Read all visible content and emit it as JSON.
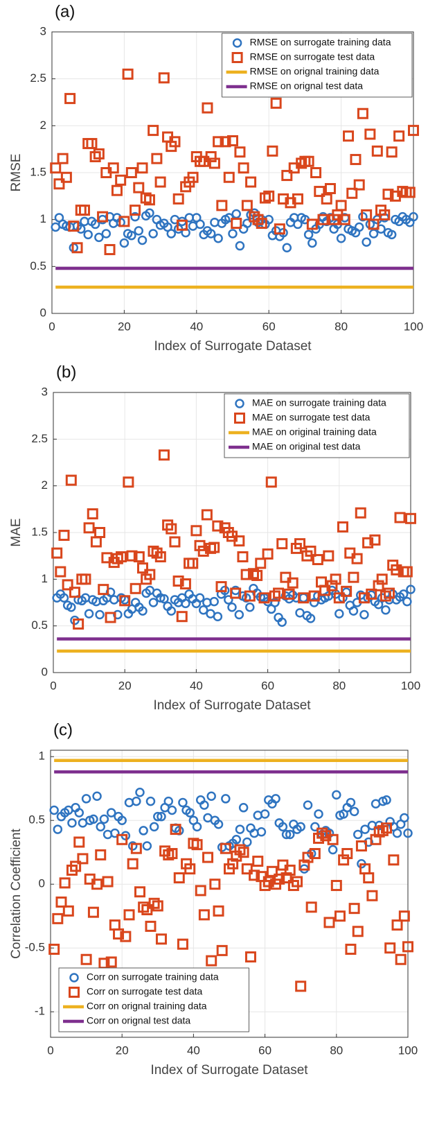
{
  "chart_data": [
    {
      "type": "scatter",
      "panel_label": "(a)",
      "ylabel": "RMSE",
      "xlabel": "Index of Surrogate Dataset",
      "xlim": [
        0,
        100
      ],
      "xticks": [
        0,
        20,
        40,
        60,
        80,
        100
      ],
      "ylim": [
        0,
        3
      ],
      "yticks": [
        0,
        0.5,
        1,
        1.5,
        2,
        2.5,
        3
      ],
      "grid": true,
      "legend": "top-right",
      "x": [
        1,
        2,
        3,
        4,
        5,
        6,
        7,
        8,
        9,
        10,
        11,
        12,
        13,
        14,
        15,
        16,
        17,
        18,
        19,
        20,
        21,
        22,
        23,
        24,
        25,
        26,
        27,
        28,
        29,
        30,
        31,
        32,
        33,
        34,
        35,
        36,
        37,
        38,
        39,
        40,
        41,
        42,
        43,
        44,
        45,
        46,
        47,
        48,
        49,
        50,
        51,
        52,
        53,
        54,
        55,
        56,
        57,
        58,
        59,
        60,
        61,
        62,
        63,
        64,
        65,
        66,
        67,
        68,
        69,
        70,
        71,
        72,
        73,
        74,
        75,
        76,
        77,
        78,
        79,
        80,
        81,
        82,
        83,
        84,
        85,
        86,
        87,
        88,
        89,
        90,
        91,
        92,
        93,
        94,
        95,
        96,
        97,
        98,
        99,
        100
      ],
      "series": [
        {
          "name": "RMSE on surrogate training data",
          "color": "#2f74c0",
          "marker": "circle",
          "values": [
            0.92,
            1.02,
            0.95,
            0.93,
            0.92,
            0.7,
            0.93,
            0.9,
            0.98,
            0.84,
            0.98,
            0.95,
            0.81,
            1.0,
            0.85,
            1.03,
            0.96,
            1.02,
            0.97,
            0.75,
            0.85,
            0.83,
            1.03,
            0.88,
            0.78,
            1.04,
            1.07,
            0.85,
            1.0,
            0.94,
            0.96,
            0.92,
            0.85,
            1.0,
            0.9,
            0.98,
            0.86,
            1.02,
            0.93,
            1.02,
            0.95,
            0.84,
            0.88,
            0.85,
            0.97,
            0.8,
            0.96,
            1.0,
            1.02,
            0.85,
            1.06,
            0.72,
            0.9,
            0.96,
            1.05,
            1.07,
            0.97,
            1.0,
            0.95,
            1.0,
            0.83,
            0.88,
            0.82,
            0.86,
            0.7,
            0.97,
            1.02,
            0.95,
            1.02,
            1.0,
            0.84,
            0.75,
            0.9,
            0.95,
            1.03,
            0.98,
            1.02,
            0.9,
            0.95,
            0.8,
            1.02,
            0.9,
            0.88,
            0.86,
            0.92,
            1.03,
            0.76,
            0.95,
            0.85,
            1.0,
            0.9,
            1.02,
            0.86,
            0.84,
            1.0,
            0.98,
            1.03,
            1.0,
            0.97,
            1.03
          ]
        },
        {
          "name": "RMSE on surrogate test data",
          "color": "#d9461c",
          "marker": "square",
          "values": [
            1.55,
            1.38,
            1.65,
            1.45,
            2.29,
            0.93,
            0.7,
            1.1,
            1.1,
            1.81,
            1.81,
            1.67,
            1.7,
            1.03,
            1.5,
            0.68,
            1.55,
            1.31,
            1.42,
            0.98,
            2.55,
            1.5,
            1.1,
            1.34,
            1.55,
            1.23,
            1.21,
            1.95,
            1.65,
            1.4,
            2.51,
            1.88,
            1.78,
            1.83,
            1.22,
            0.94,
            1.35,
            1.4,
            1.45,
            1.67,
            1.62,
            1.62,
            2.19,
            1.67,
            1.6,
            1.83,
            1.15,
            1.83,
            1.45,
            1.84,
            0.96,
            1.72,
            1.55,
            1.15,
            1.4,
            1.03,
            1.0,
            0.96,
            1.23,
            1.25,
            1.73,
            2.24,
            0.9,
            1.22,
            1.47,
            1.18,
            1.55,
            1.22,
            1.6,
            1.62,
            1.62,
            0.95,
            1.5,
            1.3,
            1.0,
            1.22,
            1.33,
            1.0,
            1.05,
            1.15,
            1.0,
            1.89,
            1.28,
            1.64,
            1.37,
            2.13,
            1.05,
            1.91,
            0.95,
            1.73,
            1.1,
            1.05,
            1.27,
            1.72,
            1.25,
            1.89,
            1.3,
            1.29,
            1.29,
            1.95
          ]
        },
        {
          "name": "RMSE on orignal training data",
          "color": "#edb120",
          "value": 0.28
        },
        {
          "name": "RMSE on orignal test data",
          "color": "#7e2f8e",
          "value": 0.48
        }
      ]
    },
    {
      "type": "scatter",
      "panel_label": "(b)",
      "ylabel": "MAE",
      "xlabel": "Index of Surrogate Dataset",
      "xlim": [
        0,
        100
      ],
      "xticks": [
        0,
        20,
        40,
        60,
        80,
        100
      ],
      "ylim": [
        0,
        3
      ],
      "yticks": [
        0,
        0.5,
        1,
        1.5,
        2,
        2.5,
        3
      ],
      "grid": true,
      "legend": "top-right",
      "x": [
        1,
        2,
        3,
        4,
        5,
        6,
        7,
        8,
        9,
        10,
        11,
        12,
        13,
        14,
        15,
        16,
        17,
        18,
        19,
        20,
        21,
        22,
        23,
        24,
        25,
        26,
        27,
        28,
        29,
        30,
        31,
        32,
        33,
        34,
        35,
        36,
        37,
        38,
        39,
        40,
        41,
        42,
        43,
        44,
        45,
        46,
        47,
        48,
        49,
        50,
        51,
        52,
        53,
        54,
        55,
        56,
        57,
        58,
        59,
        60,
        61,
        62,
        63,
        64,
        65,
        66,
        67,
        68,
        69,
        70,
        71,
        72,
        73,
        74,
        75,
        76,
        77,
        78,
        79,
        80,
        81,
        82,
        83,
        84,
        85,
        86,
        87,
        88,
        89,
        90,
        91,
        92,
        93,
        94,
        95,
        96,
        97,
        98,
        99,
        100
      ],
      "series": [
        {
          "name": "MAE on surrogate training data",
          "color": "#2f74c0",
          "marker": "circle",
          "values": [
            0.8,
            0.84,
            0.8,
            0.72,
            0.7,
            0.56,
            0.78,
            0.77,
            0.8,
            0.63,
            0.78,
            0.76,
            0.62,
            0.77,
            0.8,
            0.86,
            0.78,
            0.62,
            0.8,
            0.78,
            0.63,
            0.68,
            0.75,
            0.7,
            0.66,
            0.85,
            0.88,
            0.75,
            0.85,
            0.8,
            0.79,
            0.71,
            0.66,
            0.78,
            0.75,
            0.8,
            0.74,
            0.84,
            0.79,
            0.74,
            0.8,
            0.67,
            0.75,
            0.63,
            0.76,
            0.6,
            0.84,
            0.88,
            0.78,
            0.7,
            0.88,
            0.62,
            0.82,
            0.8,
            0.7,
            0.9,
            0.85,
            0.81,
            0.8,
            0.76,
            0.68,
            0.75,
            0.59,
            0.54,
            0.82,
            0.79,
            0.83,
            0.8,
            0.64,
            0.8,
            0.61,
            0.58,
            0.75,
            0.82,
            0.78,
            0.8,
            0.82,
            0.88,
            0.84,
            0.63,
            0.8,
            0.86,
            0.72,
            0.66,
            0.75,
            0.83,
            0.62,
            0.8,
            0.83,
            0.76,
            0.73,
            0.8,
            0.67,
            0.78,
            0.84,
            0.78,
            0.81,
            0.84,
            0.76,
            0.89
          ]
        },
        {
          "name": "MAE on surrogate test data",
          "color": "#d9461c",
          "marker": "square",
          "values": [
            1.28,
            1.08,
            1.47,
            0.94,
            2.06,
            0.86,
            0.52,
            1.0,
            1.0,
            1.55,
            1.7,
            1.4,
            1.5,
            0.89,
            1.23,
            0.59,
            1.18,
            1.22,
            1.24,
            0.77,
            2.04,
            1.25,
            0.9,
            1.24,
            1.12,
            1.0,
            1.05,
            1.3,
            1.28,
            1.24,
            2.33,
            1.58,
            1.54,
            1.4,
            0.98,
            0.6,
            0.95,
            1.17,
            1.17,
            1.52,
            1.36,
            1.3,
            1.69,
            1.33,
            1.34,
            1.57,
            0.92,
            1.55,
            1.5,
            1.46,
            0.85,
            1.41,
            1.24,
            1.05,
            0.82,
            1.06,
            1.04,
            1.17,
            0.8,
            1.27,
            2.04,
            0.82,
            0.85,
            1.38,
            1.02,
            0.84,
            0.96,
            1.33,
            1.38,
            0.8,
            1.25,
            1.3,
            0.82,
            1.21,
            0.97,
            0.88,
            1.25,
            0.93,
            1.0,
            0.8,
            1.56,
            0.87,
            1.28,
            1.02,
            1.22,
            1.71,
            0.8,
            1.39,
            0.84,
            1.42,
            0.93,
            1.0,
            0.82,
            0.85,
            1.15,
            1.1,
            1.66,
            1.08,
            1.08,
            1.65
          ]
        },
        {
          "name": "MAE on original training data",
          "color": "#edb120",
          "value": 0.23
        },
        {
          "name": "MAE on original test data",
          "color": "#7e2f8e",
          "value": 0.36
        }
      ]
    },
    {
      "type": "scatter",
      "panel_label": "(c)",
      "ylabel": "Correlation Coefficient",
      "xlabel": "Index of Surrogate Dataset",
      "xlim": [
        0,
        100
      ],
      "xticks": [
        0,
        20,
        40,
        60,
        80,
        100
      ],
      "ylim": [
        -1.2,
        1.05
      ],
      "yticks": [
        -1,
        -0.5,
        0,
        0.5,
        1
      ],
      "grid": true,
      "legend": "bottom-left",
      "x": [
        1,
        2,
        3,
        4,
        5,
        6,
        7,
        8,
        9,
        10,
        11,
        12,
        13,
        14,
        15,
        16,
        17,
        18,
        19,
        20,
        21,
        22,
        23,
        24,
        25,
        26,
        27,
        28,
        29,
        30,
        31,
        32,
        33,
        34,
        35,
        36,
        37,
        38,
        39,
        40,
        41,
        42,
        43,
        44,
        45,
        46,
        47,
        48,
        49,
        50,
        51,
        52,
        53,
        54,
        55,
        56,
        57,
        58,
        59,
        60,
        61,
        62,
        63,
        64,
        65,
        66,
        67,
        68,
        69,
        70,
        71,
        72,
        73,
        74,
        75,
        76,
        77,
        78,
        79,
        80,
        81,
        82,
        83,
        84,
        85,
        86,
        87,
        88,
        89,
        90,
        91,
        92,
        93,
        94,
        95,
        96,
        97,
        98,
        99,
        100
      ],
      "series": [
        {
          "name": "Corr on surrogate training data",
          "color": "#2f74c0",
          "marker": "circle",
          "values": [
            0.58,
            0.43,
            0.53,
            0.56,
            0.58,
            0.48,
            0.6,
            0.56,
            0.48,
            0.67,
            0.5,
            0.51,
            0.69,
            0.45,
            0.51,
            0.39,
            0.56,
            0.4,
            0.53,
            0.5,
            0.38,
            0.64,
            0.3,
            0.65,
            0.72,
            0.42,
            0.3,
            0.65,
            0.45,
            0.53,
            0.53,
            0.6,
            0.65,
            0.58,
            0.44,
            0.42,
            0.64,
            0.58,
            0.56,
            0.5,
            0.45,
            0.66,
            0.62,
            0.52,
            0.69,
            0.5,
            0.47,
            0.29,
            0.67,
            0.3,
            0.32,
            0.35,
            0.43,
            0.6,
            0.33,
            0.44,
            0.4,
            0.54,
            0.41,
            0.55,
            0.66,
            0.63,
            0.67,
            0.48,
            0.45,
            0.39,
            0.39,
            0.47,
            0.43,
            0.45,
            0.12,
            0.62,
            0.24,
            0.45,
            0.55,
            0.39,
            0.42,
            0.4,
            0.27,
            0.7,
            0.54,
            0.55,
            0.6,
            0.64,
            0.57,
            0.39,
            0.16,
            0.43,
            0.33,
            0.46,
            0.63,
            0.46,
            0.65,
            0.66,
            0.49,
            0.45,
            0.4,
            0.47,
            0.52,
            0.4
          ]
        },
        {
          "name": "Corr on surrogate test data",
          "color": "#d9461c",
          "marker": "square",
          "values": [
            -0.51,
            -0.27,
            -0.14,
            0.01,
            -0.21,
            0.11,
            0.14,
            0.33,
            0.2,
            -0.59,
            0.04,
            -0.22,
            0.0,
            0.23,
            -0.62,
            0.02,
            -0.61,
            -0.32,
            -0.39,
            0.35,
            -0.41,
            -0.24,
            0.16,
            0.28,
            -0.06,
            -0.18,
            -0.2,
            -0.33,
            -0.15,
            -0.17,
            -0.43,
            0.26,
            0.23,
            0.24,
            0.43,
            0.05,
            -0.47,
            0.16,
            0.12,
            0.32,
            0.31,
            -0.05,
            -0.24,
            0.21,
            -0.6,
            0.0,
            -0.21,
            -0.52,
            0.28,
            0.12,
            0.16,
            0.22,
            0.27,
            0.25,
            0.12,
            -0.57,
            0.07,
            0.18,
            0.06,
            -0.01,
            0.02,
            0.1,
            0.0,
            0.04,
            0.15,
            0.05,
            0.11,
            -0.01,
            0.02,
            -0.8,
            0.15,
            0.21,
            -0.18,
            0.24,
            0.36,
            0.4,
            0.38,
            -0.3,
            0.35,
            -0.01,
            -0.25,
            0.19,
            0.24,
            -0.51,
            -0.19,
            -0.37,
            0.3,
            0.12,
            0.05,
            -0.09,
            0.35,
            0.41,
            0.42,
            0.44,
            -0.5,
            0.19,
            -0.32,
            -0.59,
            -0.25,
            -0.49
          ]
        },
        {
          "name": "Corr on orignal training data",
          "color": "#edb120",
          "value": 0.97
        },
        {
          "name": "Corr on orignal test data",
          "color": "#7e2f8e",
          "value": 0.88
        }
      ]
    }
  ]
}
